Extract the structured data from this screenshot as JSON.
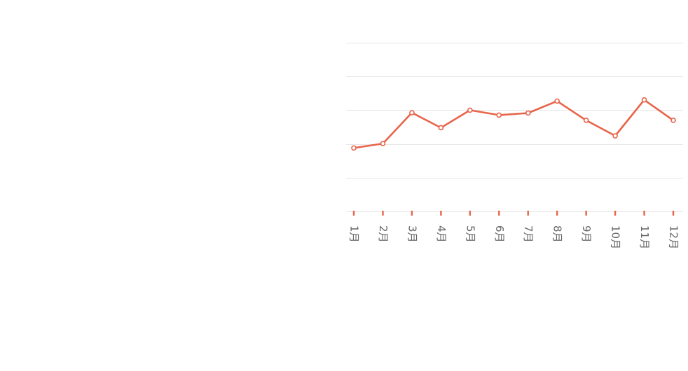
{
  "chart_data": {
    "type": "line",
    "categories": [
      "1月",
      "2月",
      "3月",
      "4月",
      "5月",
      "6月",
      "7月",
      "8月",
      "9月",
      "10月",
      "11月",
      "12月"
    ],
    "series": [
      {
        "values": [
          37.6,
          40.2,
          58.5,
          49.6,
          60.0,
          57.1,
          58.3,
          65.4,
          54.0,
          44.8,
          66.1,
          54.0
        ]
      }
    ],
    "ylim": [
      0,
      100
    ],
    "y_gridlines": [
      0,
      20,
      40,
      60,
      80,
      100
    ],
    "grid": true,
    "legend": "none",
    "colors": {
      "line": "#e8644a",
      "grid": "#e6e6e6",
      "tick_label": "#666666"
    }
  }
}
